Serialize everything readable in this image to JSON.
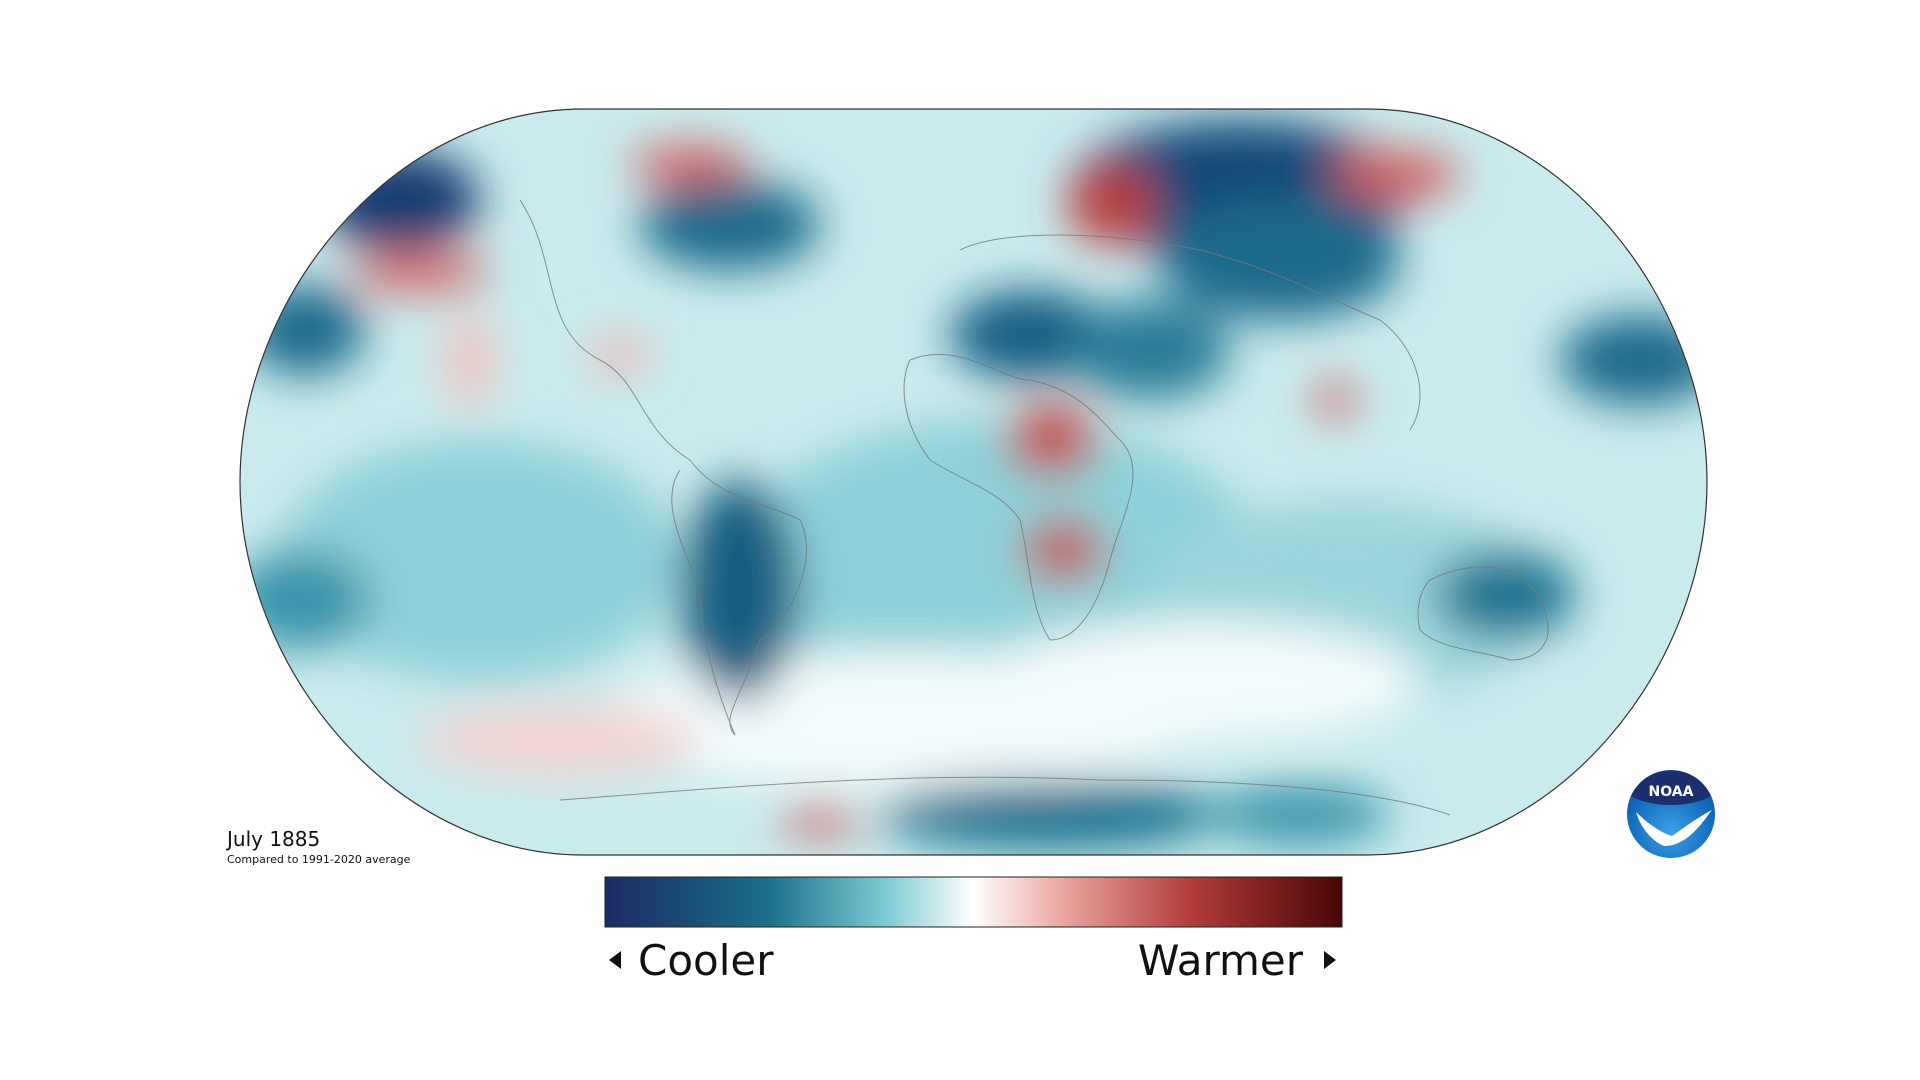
{
  "map": {
    "date": "July 1885",
    "subtitle": "Compared to 1991-2020 average"
  },
  "legend": {
    "low": "Cooler",
    "high": "Warmer"
  },
  "logo": {
    "text": "NOAA"
  }
}
